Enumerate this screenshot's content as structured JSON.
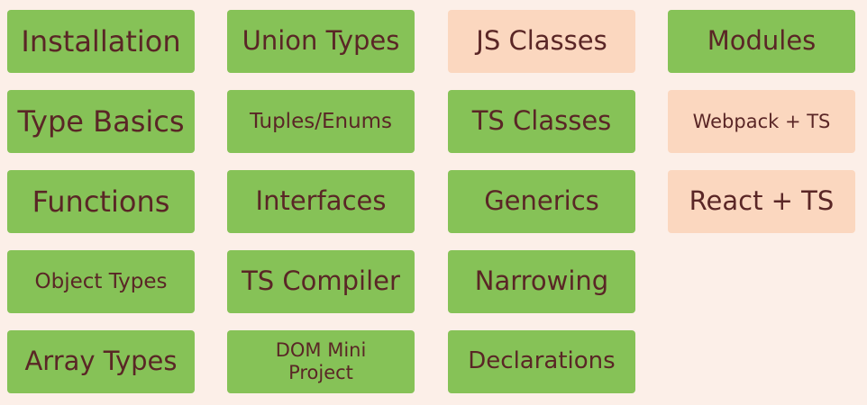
{
  "tiles": {
    "installation": "Installation",
    "type_basics": "Type Basics",
    "functions": "Functions",
    "object_types": "Object Types",
    "array_types": "Array Types",
    "union_types": "Union Types",
    "tuples_enums": "Tuples/Enums",
    "interfaces": "Interfaces",
    "ts_compiler": "TS Compiler",
    "dom_mini_project_line1": "DOM Mini",
    "dom_mini_project_line2": "Project",
    "js_classes": "JS Classes",
    "ts_classes": "TS Classes",
    "generics": "Generics",
    "narrowing": "Narrowing",
    "declarations": "Declarations",
    "modules": "Modules",
    "webpack_ts": "Webpack + TS",
    "react_ts": "React + TS"
  },
  "colors": {
    "background": "#fcefe8",
    "green_tile": "#86c257",
    "peach_tile": "#fbd7bf",
    "text": "#5a2626"
  }
}
